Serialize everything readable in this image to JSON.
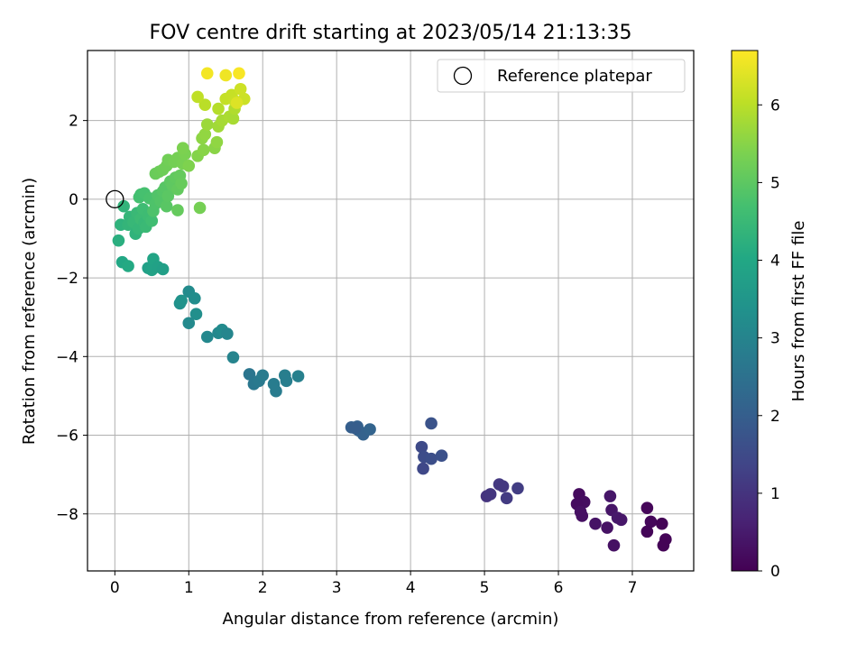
{
  "chart_data": {
    "type": "scatter",
    "title": "FOV centre drift starting at 2023/05/14 21:13:35",
    "xlabel": "Angular distance from reference (arcmin)",
    "ylabel": "Rotation from reference (arcmin)",
    "xlim": [
      -0.37,
      7.83
    ],
    "ylim": [
      -9.45,
      3.78
    ],
    "xticks": [
      "0",
      "1",
      "2",
      "3",
      "4",
      "5",
      "6",
      "7"
    ],
    "yticks": [
      "2",
      "0",
      "−2",
      "−4",
      "−6",
      "−8"
    ],
    "grid": true,
    "legend": {
      "placement": "top-right",
      "entries": [
        "Reference platepar"
      ]
    },
    "reference_point": {
      "x": 0,
      "y": 0
    },
    "colorbar": {
      "label": "Hours from first FF file",
      "colormap": "viridis",
      "range": [
        0,
        6.7
      ],
      "ticks": [
        "0",
        "1",
        "2",
        "3",
        "4",
        "5",
        "6"
      ]
    },
    "points": [
      {
        "x": 6.28,
        "y": -7.5,
        "c": 0.2
      },
      {
        "x": 6.35,
        "y": -7.7,
        "c": 0.25
      },
      {
        "x": 6.25,
        "y": -7.75,
        "c": 0.22
      },
      {
        "x": 6.3,
        "y": -7.95,
        "c": 0.3
      },
      {
        "x": 6.32,
        "y": -8.05,
        "c": 0.28
      },
      {
        "x": 6.5,
        "y": -8.25,
        "c": 0.35
      },
      {
        "x": 6.66,
        "y": -8.35,
        "c": 0.33
      },
      {
        "x": 6.7,
        "y": -7.55,
        "c": 0.4
      },
      {
        "x": 6.72,
        "y": -7.9,
        "c": 0.38
      },
      {
        "x": 6.8,
        "y": -8.1,
        "c": 0.45
      },
      {
        "x": 6.85,
        "y": -8.15,
        "c": 0.42
      },
      {
        "x": 6.75,
        "y": -8.8,
        "c": 0.3
      },
      {
        "x": 7.2,
        "y": -7.85,
        "c": 0.1
      },
      {
        "x": 7.25,
        "y": -8.2,
        "c": 0.12
      },
      {
        "x": 7.2,
        "y": -8.45,
        "c": 0.08
      },
      {
        "x": 7.4,
        "y": -8.25,
        "c": 0.05
      },
      {
        "x": 7.45,
        "y": -8.65,
        "c": 0.06
      },
      {
        "x": 7.42,
        "y": -8.8,
        "c": 0.04
      },
      {
        "x": 5.03,
        "y": -7.55,
        "c": 1.0
      },
      {
        "x": 5.08,
        "y": -7.5,
        "c": 1.05
      },
      {
        "x": 5.2,
        "y": -7.25,
        "c": 1.1
      },
      {
        "x": 5.25,
        "y": -7.3,
        "c": 1.08
      },
      {
        "x": 5.3,
        "y": -7.6,
        "c": 1.15
      },
      {
        "x": 5.45,
        "y": -7.35,
        "c": 1.2
      },
      {
        "x": 4.15,
        "y": -6.3,
        "c": 1.5
      },
      {
        "x": 4.18,
        "y": -6.55,
        "c": 1.55
      },
      {
        "x": 4.17,
        "y": -6.85,
        "c": 1.45
      },
      {
        "x": 4.28,
        "y": -6.6,
        "c": 1.6
      },
      {
        "x": 4.42,
        "y": -6.52,
        "c": 1.65
      },
      {
        "x": 4.28,
        "y": -5.7,
        "c": 1.7
      },
      {
        "x": 3.2,
        "y": -5.8,
        "c": 2.0
      },
      {
        "x": 3.28,
        "y": -5.78,
        "c": 2.05
      },
      {
        "x": 3.3,
        "y": -5.88,
        "c": 2.1
      },
      {
        "x": 3.36,
        "y": -5.98,
        "c": 2.08
      },
      {
        "x": 3.45,
        "y": -5.85,
        "c": 2.15
      },
      {
        "x": 3.25,
        "y": -5.82,
        "c": 1.95
      },
      {
        "x": 1.82,
        "y": -4.45,
        "c": 2.6
      },
      {
        "x": 1.88,
        "y": -4.7,
        "c": 2.65
      },
      {
        "x": 1.95,
        "y": -4.62,
        "c": 2.7
      },
      {
        "x": 2.0,
        "y": -4.48,
        "c": 2.75
      },
      {
        "x": 2.15,
        "y": -4.7,
        "c": 2.8
      },
      {
        "x": 2.18,
        "y": -4.88,
        "c": 2.78
      },
      {
        "x": 2.3,
        "y": -4.48,
        "c": 2.85
      },
      {
        "x": 2.32,
        "y": -4.62,
        "c": 2.83
      },
      {
        "x": 2.48,
        "y": -4.5,
        "c": 2.9
      },
      {
        "x": 1.6,
        "y": -4.02,
        "c": 3.0
      },
      {
        "x": 1.0,
        "y": -2.35,
        "c": 3.2
      },
      {
        "x": 1.08,
        "y": -2.52,
        "c": 3.25
      },
      {
        "x": 1.1,
        "y": -2.92,
        "c": 3.3
      },
      {
        "x": 1.0,
        "y": -3.15,
        "c": 3.15
      },
      {
        "x": 0.88,
        "y": -2.65,
        "c": 3.35
      },
      {
        "x": 0.9,
        "y": -2.58,
        "c": 3.4
      },
      {
        "x": 1.25,
        "y": -3.5,
        "c": 3.1
      },
      {
        "x": 1.4,
        "y": -3.4,
        "c": 3.12
      },
      {
        "x": 1.45,
        "y": -3.32,
        "c": 3.18
      },
      {
        "x": 1.52,
        "y": -3.42,
        "c": 3.05
      },
      {
        "x": 0.45,
        "y": -1.75,
        "c": 3.8
      },
      {
        "x": 0.5,
        "y": -1.8,
        "c": 3.85
      },
      {
        "x": 0.52,
        "y": -1.52,
        "c": 3.9
      },
      {
        "x": 0.58,
        "y": -1.72,
        "c": 3.82
      },
      {
        "x": 0.65,
        "y": -1.78,
        "c": 3.75
      },
      {
        "x": 0.1,
        "y": -1.6,
        "c": 4.0
      },
      {
        "x": 0.18,
        "y": -1.7,
        "c": 4.05
      },
      {
        "x": 0.05,
        "y": -1.05,
        "c": 4.2
      },
      {
        "x": 0.08,
        "y": -0.65,
        "c": 4.3
      },
      {
        "x": 0.12,
        "y": -0.18,
        "c": 4.35
      },
      {
        "x": 0.2,
        "y": -0.45,
        "c": 4.4
      },
      {
        "x": 0.18,
        "y": -0.65,
        "c": 4.38
      },
      {
        "x": 0.25,
        "y": -0.58,
        "c": 4.45
      },
      {
        "x": 0.28,
        "y": -0.88,
        "c": 4.32
      },
      {
        "x": 0.3,
        "y": -0.35,
        "c": 4.5
      },
      {
        "x": 0.32,
        "y": -0.75,
        "c": 4.42
      },
      {
        "x": 0.35,
        "y": -0.5,
        "c": 4.55
      },
      {
        "x": 0.4,
        "y": -0.6,
        "c": 4.48
      },
      {
        "x": 0.42,
        "y": -0.7,
        "c": 4.52
      },
      {
        "x": 0.38,
        "y": -0.25,
        "c": 4.6
      },
      {
        "x": 0.45,
        "y": -0.42,
        "c": 4.58
      },
      {
        "x": 0.5,
        "y": -0.55,
        "c": 4.62
      },
      {
        "x": 0.33,
        "y": 0.05,
        "c": 4.7
      },
      {
        "x": 0.35,
        "y": 0.12,
        "c": 4.68
      },
      {
        "x": 0.4,
        "y": 0.15,
        "c": 4.72
      },
      {
        "x": 0.47,
        "y": 0.02,
        "c": 4.75
      },
      {
        "x": 0.52,
        "y": -0.3,
        "c": 4.8
      },
      {
        "x": 0.55,
        "y": -0.12,
        "c": 4.82
      },
      {
        "x": 0.58,
        "y": 0.1,
        "c": 4.85
      },
      {
        "x": 0.62,
        "y": -0.05,
        "c": 4.88
      },
      {
        "x": 0.65,
        "y": 0.2,
        "c": 4.9
      },
      {
        "x": 0.68,
        "y": 0.3,
        "c": 4.92
      },
      {
        "x": 0.7,
        "y": -0.18,
        "c": 4.95
      },
      {
        "x": 0.72,
        "y": 0.08,
        "c": 4.98
      },
      {
        "x": 0.75,
        "y": 0.45,
        "c": 5.0
      },
      {
        "x": 0.78,
        "y": 0.35,
        "c": 5.02
      },
      {
        "x": 0.82,
        "y": 0.55,
        "c": 5.05
      },
      {
        "x": 0.85,
        "y": 0.25,
        "c": 5.08
      },
      {
        "x": 0.88,
        "y": 0.6,
        "c": 5.1
      },
      {
        "x": 0.9,
        "y": 0.4,
        "c": 5.12
      },
      {
        "x": 0.55,
        "y": 0.65,
        "c": 5.15
      },
      {
        "x": 0.6,
        "y": 0.7,
        "c": 5.18
      },
      {
        "x": 0.65,
        "y": 0.75,
        "c": 5.2
      },
      {
        "x": 0.7,
        "y": 0.85,
        "c": 5.22
      },
      {
        "x": 0.72,
        "y": 1.0,
        "c": 5.25
      },
      {
        "x": 0.8,
        "y": 0.95,
        "c": 5.28
      },
      {
        "x": 0.85,
        "y": 1.05,
        "c": 5.3
      },
      {
        "x": 0.92,
        "y": 0.9,
        "c": 5.32
      },
      {
        "x": 0.95,
        "y": 1.15,
        "c": 5.35
      },
      {
        "x": 0.92,
        "y": 1.3,
        "c": 5.38
      },
      {
        "x": 1.0,
        "y": 0.85,
        "c": 5.4
      },
      {
        "x": 0.85,
        "y": -0.28,
        "c": 5.1
      },
      {
        "x": 1.15,
        "y": -0.22,
        "c": 5.3
      },
      {
        "x": 1.12,
        "y": 1.1,
        "c": 5.45
      },
      {
        "x": 1.2,
        "y": 1.25,
        "c": 5.5
      },
      {
        "x": 1.18,
        "y": 1.55,
        "c": 5.55
      },
      {
        "x": 1.22,
        "y": 1.65,
        "c": 5.6
      },
      {
        "x": 1.35,
        "y": 1.3,
        "c": 5.52
      },
      {
        "x": 1.38,
        "y": 1.45,
        "c": 5.58
      },
      {
        "x": 1.25,
        "y": 1.9,
        "c": 5.7
      },
      {
        "x": 1.4,
        "y": 1.85,
        "c": 5.75
      },
      {
        "x": 1.45,
        "y": 2.0,
        "c": 5.8
      },
      {
        "x": 1.55,
        "y": 2.1,
        "c": 5.85
      },
      {
        "x": 1.6,
        "y": 2.05,
        "c": 5.82
      },
      {
        "x": 1.62,
        "y": 2.3,
        "c": 5.9
      },
      {
        "x": 1.4,
        "y": 2.3,
        "c": 5.95
      },
      {
        "x": 1.22,
        "y": 2.4,
        "c": 6.0
      },
      {
        "x": 1.12,
        "y": 2.6,
        "c": 6.05
      },
      {
        "x": 1.5,
        "y": 2.55,
        "c": 6.1
      },
      {
        "x": 1.58,
        "y": 2.65,
        "c": 6.12
      },
      {
        "x": 1.62,
        "y": 2.5,
        "c": 6.15
      },
      {
        "x": 1.75,
        "y": 2.55,
        "c": 6.18
      },
      {
        "x": 1.7,
        "y": 2.8,
        "c": 6.2
      },
      {
        "x": 1.65,
        "y": 2.45,
        "c": 6.35
      },
      {
        "x": 1.5,
        "y": 3.15,
        "c": 6.55
      },
      {
        "x": 1.25,
        "y": 3.2,
        "c": 6.6
      },
      {
        "x": 1.68,
        "y": 3.2,
        "c": 6.65
      }
    ]
  }
}
